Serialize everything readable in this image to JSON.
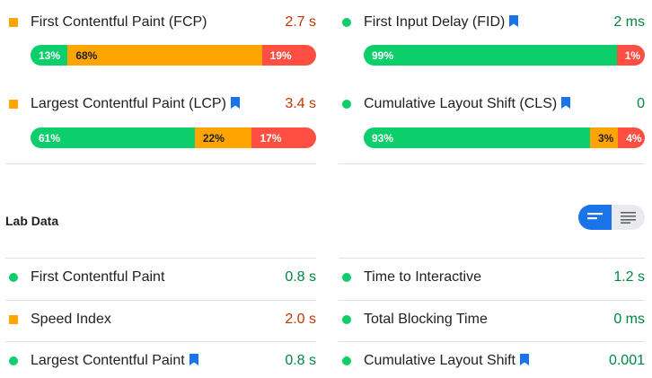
{
  "field_data": {
    "metrics": [
      {
        "label": "First Contentful Paint (FCP)",
        "value": "2.7 s",
        "status": "needs-improvement",
        "bookmark": false,
        "distribution": {
          "good": "13%",
          "needs_improvement": "68%",
          "poor": "19%"
        },
        "fractions": {
          "good": 0.13,
          "needs_improvement": 0.68,
          "poor": 0.19
        }
      },
      {
        "label": "First Input Delay (FID)",
        "value": "2 ms",
        "status": "good",
        "bookmark": true,
        "distribution": {
          "good": "99%",
          "needs_improvement": "",
          "poor": "1%"
        },
        "fractions": {
          "good": 0.99,
          "needs_improvement": 0.0,
          "poor": 0.01
        }
      },
      {
        "label": "Largest Contentful Paint (LCP)",
        "value": "3.4 s",
        "status": "needs-improvement",
        "bookmark": true,
        "distribution": {
          "good": "61%",
          "needs_improvement": "22%",
          "poor": "17%"
        },
        "fractions": {
          "good": 0.61,
          "needs_improvement": 0.22,
          "poor": 0.17
        }
      },
      {
        "label": "Cumulative Layout Shift (CLS)",
        "value": "0",
        "status": "good",
        "bookmark": true,
        "distribution": {
          "good": "93%",
          "needs_improvement": "3%",
          "poor": "4%"
        },
        "fractions": {
          "good": 0.93,
          "needs_improvement": 0.03,
          "poor": 0.04
        }
      }
    ]
  },
  "lab_data": {
    "title": "Lab Data",
    "view_toggle": {
      "active": "summary-view",
      "options": [
        "summary-view-icon",
        "list-view-icon"
      ]
    },
    "metrics": [
      {
        "label": "First Contentful Paint",
        "value": "0.8 s",
        "status": "good",
        "bookmark": false
      },
      {
        "label": "Time to Interactive",
        "value": "1.2 s",
        "status": "good",
        "bookmark": false
      },
      {
        "label": "Speed Index",
        "value": "2.0 s",
        "status": "needs-improvement",
        "bookmark": false
      },
      {
        "label": "Total Blocking Time",
        "value": "0 ms",
        "status": "good",
        "bookmark": false
      },
      {
        "label": "Largest Contentful Paint",
        "value": "0.8 s",
        "status": "good",
        "bookmark": true
      },
      {
        "label": "Cumulative Layout Shift",
        "value": "0.001",
        "status": "good",
        "bookmark": true
      }
    ]
  },
  "colors": {
    "good": "#0cce6b",
    "needs_improvement": "#ffa400",
    "poor": "#ff4e42",
    "value_good": "#018642",
    "value_needs_improvement": "#c33300",
    "bookmark": "#1a73e8",
    "toggle_active": "#1a73e8"
  }
}
